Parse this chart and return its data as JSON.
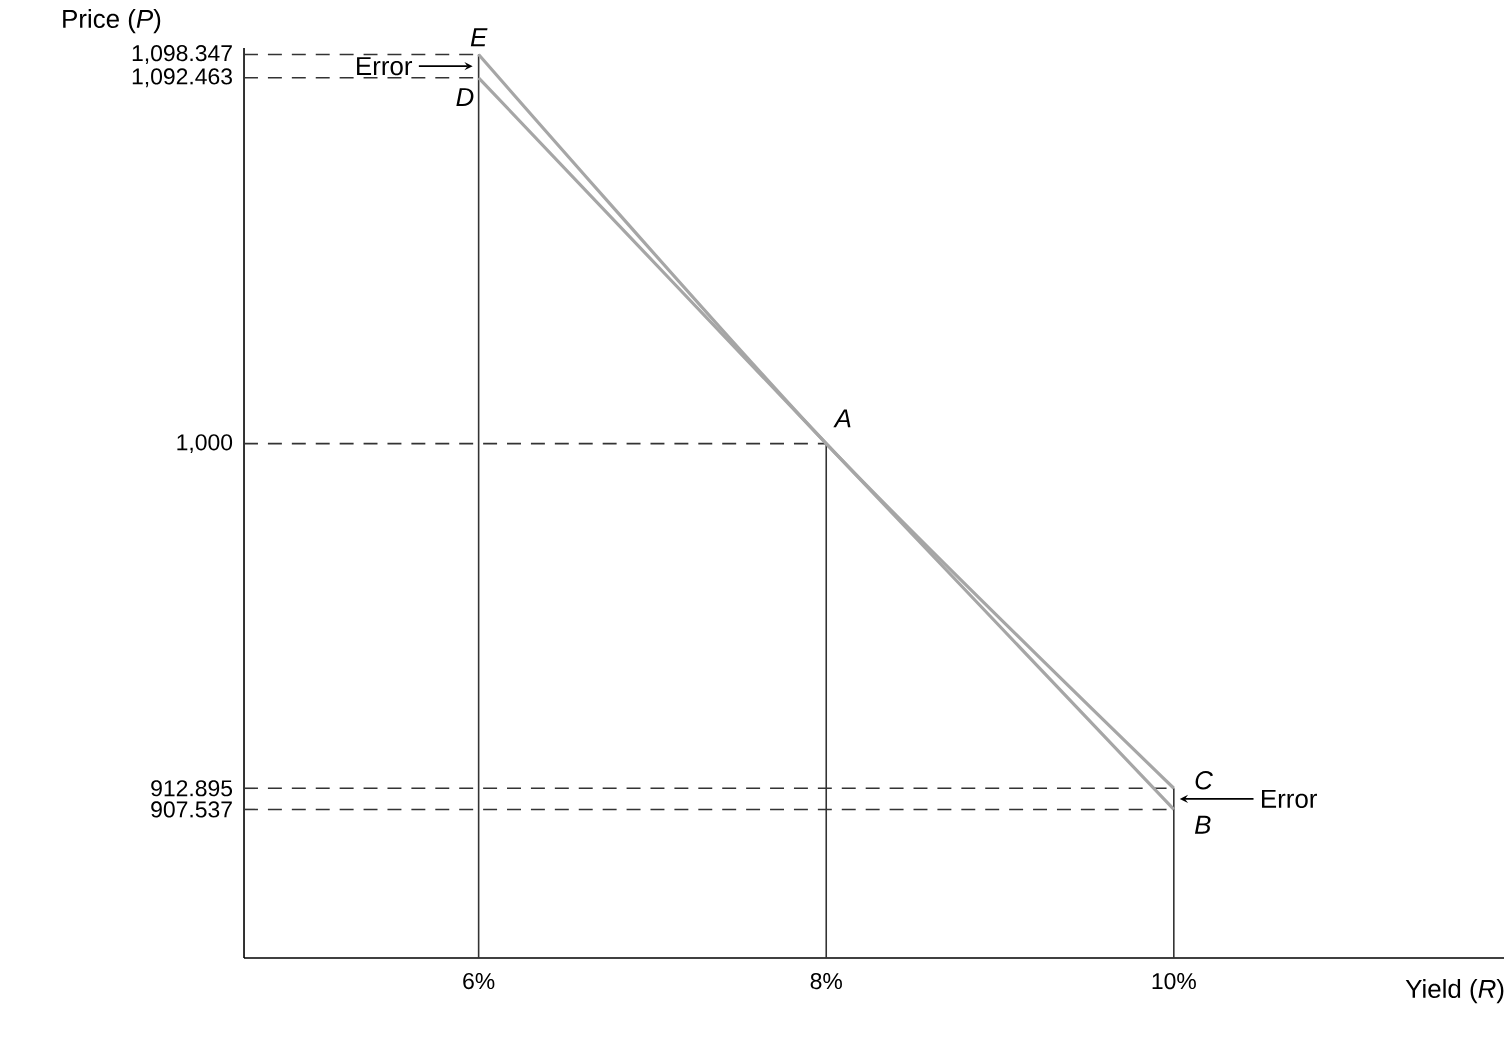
{
  "chart_data": {
    "type": "line",
    "xlabel": "Yield (*R*)",
    "ylabel": "Price (*P*)",
    "xlim": [
      4.65,
      11.9
    ],
    "ylim": [
      870,
      1100
    ],
    "xticks": [
      {
        "value": 6,
        "label": "6%"
      },
      {
        "value": 8,
        "label": "8%"
      },
      {
        "value": 10,
        "label": "10%"
      }
    ],
    "yticks": [
      {
        "value": 907.537,
        "label": "907.537"
      },
      {
        "value": 912.895,
        "label": "912.895"
      },
      {
        "value": 1000,
        "label": "1,000"
      },
      {
        "value": 1092.463,
        "label": "1,092.463"
      },
      {
        "value": 1098.347,
        "label": "1,098.347"
      }
    ],
    "series": [
      {
        "color": "#a6a6a6",
        "x": [
          6,
          8,
          10
        ],
        "values": [
          1098.347,
          1000,
          912.895
        ]
      },
      {
        "color": "#a6a6a6",
        "x": [
          6,
          8,
          10
        ],
        "values": [
          1092.463,
          1000,
          907.537
        ]
      }
    ],
    "ref_lines": [
      {
        "axis": "x",
        "value": 6,
        "line_style": "solid",
        "color": "#333333"
      },
      {
        "axis": "x",
        "value": 8,
        "line_style": "solid",
        "color": "#333333"
      },
      {
        "axis": "x",
        "value": 10,
        "line_style": "solid",
        "color": "#333333"
      },
      {
        "axis": "y",
        "value": 1098.347,
        "line_style": "dashed",
        "color": "#333333"
      },
      {
        "axis": "y",
        "value": 1092.463,
        "line_style": "dashed",
        "color": "#333333"
      },
      {
        "axis": "y",
        "value": 1000,
        "line_style": "dashed",
        "color": "#333333"
      },
      {
        "axis": "y",
        "value": 912.895,
        "line_style": "dashed",
        "color": "#333333"
      },
      {
        "axis": "y",
        "value": 907.537,
        "line_style": "dashed",
        "color": "#333333"
      }
    ],
    "annotations": [
      {
        "text": "E",
        "x": 6,
        "y": 1098.347
      },
      {
        "text": "D",
        "x": 6,
        "y": 1092.463
      },
      {
        "text": "A",
        "x": 8,
        "y": 1000
      },
      {
        "text": "C",
        "x": 10,
        "y": 912.895
      },
      {
        "text": "B",
        "x": 10,
        "y": 907.537
      },
      {
        "text": "Error",
        "x": 6,
        "y": 1095.4
      },
      {
        "text": "Error",
        "x": 10,
        "y": 910.2
      }
    ],
    "grid": false
  }
}
